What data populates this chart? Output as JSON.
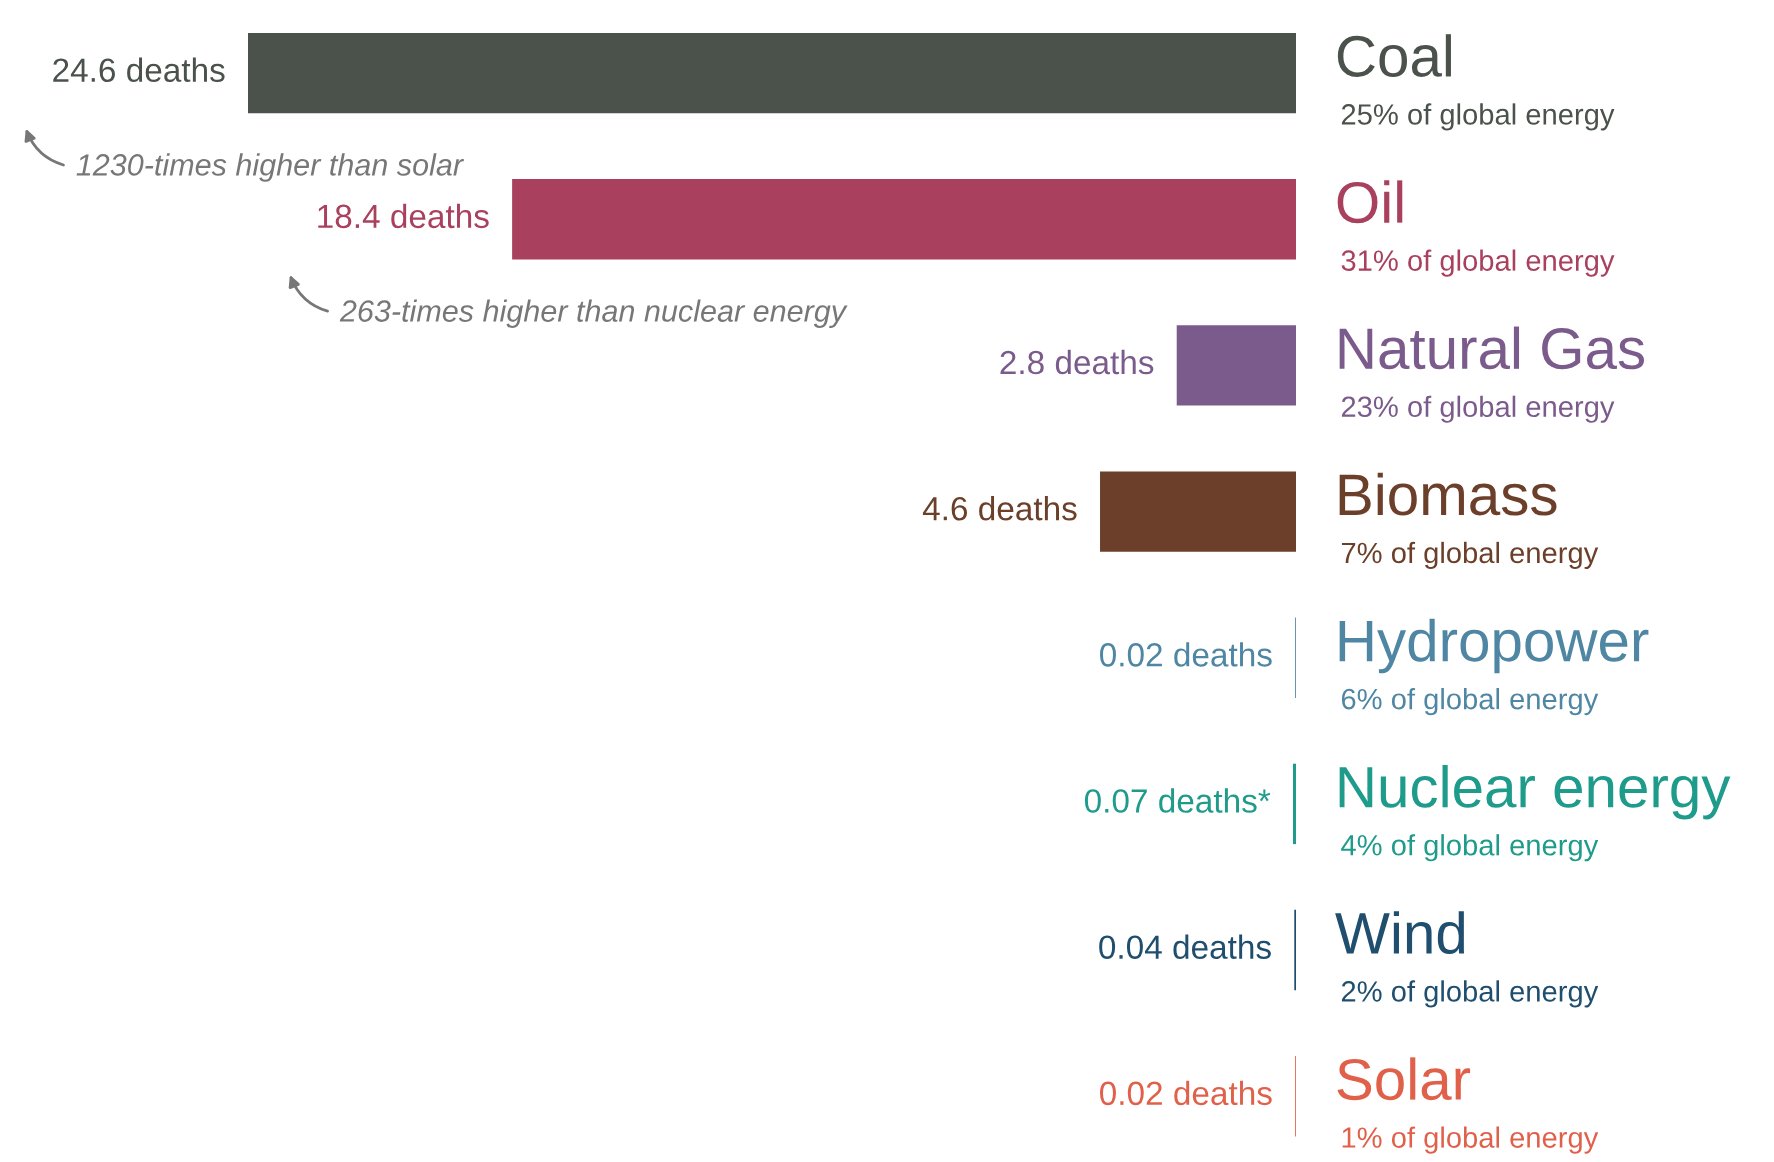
{
  "chart_data": {
    "type": "bar",
    "orientation": "horizontal",
    "categories": [
      "Coal",
      "Oil",
      "Natural Gas",
      "Biomass",
      "Hydropower",
      "Nuclear energy",
      "Wind",
      "Solar"
    ],
    "values": [
      24.6,
      18.4,
      2.8,
      4.6,
      0.02,
      0.07,
      0.04,
      0.02
    ],
    "colors": [
      "#4a524b",
      "#a8405e",
      "#7b5a8c",
      "#6b3f2a",
      "#4e86a3",
      "#1e9b8a",
      "#1f4e6e",
      "#e0604a"
    ],
    "value_labels": [
      "24.6 deaths",
      "18.4 deaths",
      "2.8 deaths",
      "4.6 deaths",
      "0.02 deaths",
      "0.07 deaths*",
      "0.04 deaths",
      "0.02 deaths"
    ],
    "annotations": [
      {
        "text": "1230-times higher than solar",
        "x": 24.6,
        "y": "Coal"
      },
      {
        "text": "263-times higher than nuclear energy",
        "x": 18.4,
        "y": "Oil"
      },
      "25% of global energy",
      "31% of global energy",
      "23% of global energy",
      "7% of global energy",
      "6% of global energy",
      "4% of global energy",
      "2% of global energy",
      "1% of global energy"
    ]
  }
}
